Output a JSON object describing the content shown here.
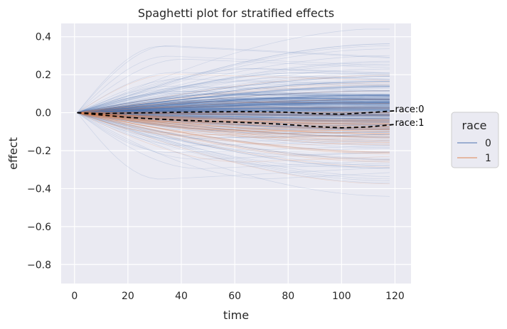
{
  "chart_data": {
    "type": "line",
    "title": "Spaghetti plot for stratified effects",
    "xlabel": "time",
    "ylabel": "effect",
    "xlim": [
      -5,
      126
    ],
    "ylim": [
      -0.9,
      0.47
    ],
    "xticks": [
      0,
      20,
      40,
      60,
      80,
      100,
      120
    ],
    "yticks": [
      0.4,
      0.2,
      0.0,
      -0.2,
      -0.4,
      -0.6,
      -0.8
    ],
    "xtick_labels": [
      "0",
      "20",
      "40",
      "60",
      "80",
      "100",
      "120"
    ],
    "ytick_labels": [
      "0.4",
      "0.2",
      "0.0",
      "−0.2",
      "−0.4",
      "−0.6",
      "−0.8"
    ],
    "grid": true,
    "legend": {
      "title": "race",
      "placement": "outside-right",
      "entries": [
        {
          "label": "0",
          "color": "#4c72b0"
        },
        {
          "label": "1",
          "color": "#dd8452"
        }
      ]
    },
    "background_color": "#eaeaf2",
    "spaghetti": {
      "description_note": "",
      "x_start": 1,
      "x_end": 120,
      "race0_count": 260,
      "race1_count": 70,
      "race0_color": "#4c72b0",
      "race1_color": "#dd8452"
    },
    "series": [
      {
        "name": "race:0",
        "style": "dashed",
        "color": "#000000",
        "x": [
          1,
          10,
          20,
          30,
          40,
          50,
          60,
          70,
          80,
          90,
          100,
          110,
          120
        ],
        "y": [
          0.0,
          -0.005,
          -0.002,
          0.0,
          0.003,
          0.004,
          0.005,
          0.005,
          0.002,
          -0.005,
          -0.008,
          0.0,
          0.01
        ]
      },
      {
        "name": "race:1",
        "style": "dashed",
        "color": "#000000",
        "x": [
          1,
          10,
          20,
          30,
          40,
          50,
          60,
          70,
          80,
          90,
          100,
          110,
          120
        ],
        "y": [
          0.0,
          -0.012,
          -0.025,
          -0.033,
          -0.04,
          -0.045,
          -0.05,
          -0.055,
          -0.063,
          -0.073,
          -0.08,
          -0.075,
          -0.062
        ]
      }
    ],
    "annotations": [
      {
        "text": "race:0",
        "series": "race:0"
      },
      {
        "text": "race:1",
        "series": "race:1"
      }
    ]
  }
}
